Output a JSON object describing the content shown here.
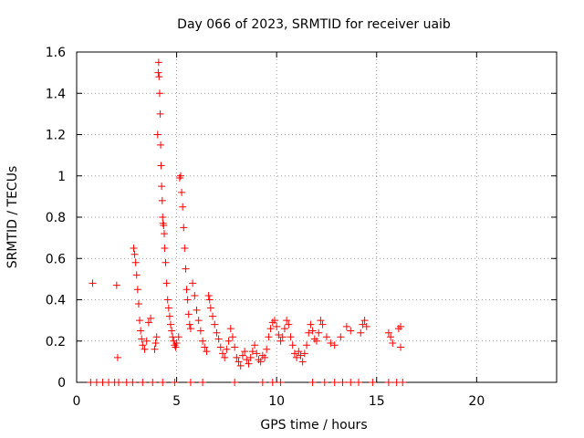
{
  "chart_data": {
    "type": "scatter",
    "title": "Day 066 of 2023, SRMTID for receiver uaib",
    "xlabel": "GPS time / hours",
    "ylabel": "SRMTID / TECUs",
    "xlim": [
      0,
      24
    ],
    "ylim": [
      0,
      1.6
    ],
    "xticks": [
      0,
      5,
      10,
      15,
      20
    ],
    "xtick_labels": [
      "0",
      "5",
      "10",
      "15",
      "20"
    ],
    "yticks": [
      0,
      0.2,
      0.4,
      0.6,
      0.8,
      1,
      1.2,
      1.4,
      1.6
    ],
    "ytick_labels": [
      "0",
      "0.2",
      "0.4",
      "0.6",
      "0.8",
      "1",
      "1.2",
      "1.4",
      "1.6"
    ],
    "grid": true,
    "marker": "+",
    "color": "#ff0000",
    "series": [
      {
        "name": "SRMTID",
        "points": [
          [
            0.8,
            0.48
          ],
          [
            2.0,
            0.47
          ],
          [
            2.05,
            0.12
          ],
          [
            2.85,
            0.65
          ],
          [
            2.9,
            0.62
          ],
          [
            2.95,
            0.58
          ],
          [
            3.0,
            0.52
          ],
          [
            3.05,
            0.45
          ],
          [
            3.1,
            0.38
          ],
          [
            3.15,
            0.3
          ],
          [
            3.2,
            0.25
          ],
          [
            3.25,
            0.21
          ],
          [
            3.3,
            0.18
          ],
          [
            3.4,
            0.16
          ],
          [
            3.5,
            0.2
          ],
          [
            3.6,
            0.29
          ],
          [
            3.7,
            0.31
          ],
          [
            3.9,
            0.16
          ],
          [
            3.95,
            0.19
          ],
          [
            4.0,
            0.22
          ],
          [
            4.05,
            1.2
          ],
          [
            4.08,
            1.5
          ],
          [
            4.1,
            1.55
          ],
          [
            4.12,
            1.48
          ],
          [
            4.15,
            1.4
          ],
          [
            4.18,
            1.3
          ],
          [
            4.2,
            1.15
          ],
          [
            4.22,
            1.05
          ],
          [
            4.25,
            0.95
          ],
          [
            4.28,
            0.88
          ],
          [
            4.3,
            0.8
          ],
          [
            4.32,
            0.77
          ],
          [
            4.35,
            0.76
          ],
          [
            4.38,
            0.72
          ],
          [
            4.4,
            0.65
          ],
          [
            4.45,
            0.58
          ],
          [
            4.5,
            0.48
          ],
          [
            4.55,
            0.4
          ],
          [
            4.6,
            0.36
          ],
          [
            4.65,
            0.32
          ],
          [
            4.7,
            0.28
          ],
          [
            4.75,
            0.25
          ],
          [
            4.8,
            0.22
          ],
          [
            4.85,
            0.2
          ],
          [
            4.9,
            0.18
          ],
          [
            4.95,
            0.17
          ],
          [
            5.0,
            0.19
          ],
          [
            5.1,
            0.22
          ],
          [
            5.15,
            0.99
          ],
          [
            5.2,
            1.0
          ],
          [
            5.25,
            0.92
          ],
          [
            5.3,
            0.85
          ],
          [
            5.35,
            0.75
          ],
          [
            5.4,
            0.65
          ],
          [
            5.45,
            0.55
          ],
          [
            5.5,
            0.45
          ],
          [
            5.55,
            0.4
          ],
          [
            5.6,
            0.33
          ],
          [
            5.65,
            0.28
          ],
          [
            5.7,
            0.26
          ],
          [
            5.8,
            0.48
          ],
          [
            5.9,
            0.42
          ],
          [
            6.0,
            0.35
          ],
          [
            6.1,
            0.3
          ],
          [
            6.2,
            0.25
          ],
          [
            6.3,
            0.2
          ],
          [
            6.4,
            0.17
          ],
          [
            6.5,
            0.15
          ],
          [
            6.6,
            0.42
          ],
          [
            6.65,
            0.4
          ],
          [
            6.7,
            0.36
          ],
          [
            6.8,
            0.32
          ],
          [
            6.9,
            0.28
          ],
          [
            7.0,
            0.24
          ],
          [
            7.1,
            0.21
          ],
          [
            7.2,
            0.17
          ],
          [
            7.3,
            0.14
          ],
          [
            7.4,
            0.12
          ],
          [
            7.5,
            0.16
          ],
          [
            7.6,
            0.2
          ],
          [
            7.7,
            0.26
          ],
          [
            7.8,
            0.22
          ],
          [
            7.9,
            0.17
          ],
          [
            8.0,
            0.12
          ],
          [
            8.1,
            0.1
          ],
          [
            8.2,
            0.08
          ],
          [
            8.3,
            0.13
          ],
          [
            8.4,
            0.15
          ],
          [
            8.5,
            0.11
          ],
          [
            8.6,
            0.09
          ],
          [
            8.7,
            0.12
          ],
          [
            8.8,
            0.15
          ],
          [
            8.9,
            0.18
          ],
          [
            9.0,
            0.14
          ],
          [
            9.1,
            0.11
          ],
          [
            9.2,
            0.1
          ],
          [
            9.3,
            0.13
          ],
          [
            9.4,
            0.12
          ],
          [
            9.5,
            0.16
          ],
          [
            9.6,
            0.22
          ],
          [
            9.7,
            0.26
          ],
          [
            9.8,
            0.29
          ],
          [
            9.9,
            0.3
          ],
          [
            10.0,
            0.27
          ],
          [
            10.1,
            0.23
          ],
          [
            10.2,
            0.2
          ],
          [
            10.3,
            0.22
          ],
          [
            10.4,
            0.26
          ],
          [
            10.5,
            0.3
          ],
          [
            10.6,
            0.28
          ],
          [
            10.7,
            0.22
          ],
          [
            10.8,
            0.18
          ],
          [
            10.9,
            0.14
          ],
          [
            11.0,
            0.12
          ],
          [
            11.1,
            0.15
          ],
          [
            11.2,
            0.13
          ],
          [
            11.3,
            0.1
          ],
          [
            11.4,
            0.14
          ],
          [
            11.5,
            0.18
          ],
          [
            11.6,
            0.24
          ],
          [
            11.7,
            0.28
          ],
          [
            11.8,
            0.25
          ],
          [
            11.9,
            0.21
          ],
          [
            12.0,
            0.2
          ],
          [
            12.1,
            0.24
          ],
          [
            12.2,
            0.3
          ],
          [
            12.3,
            0.28
          ],
          [
            12.5,
            0.22
          ],
          [
            12.7,
            0.19
          ],
          [
            12.9,
            0.18
          ],
          [
            13.2,
            0.22
          ],
          [
            13.5,
            0.27
          ],
          [
            13.7,
            0.25
          ],
          [
            14.2,
            0.24
          ],
          [
            14.3,
            0.28
          ],
          [
            14.4,
            0.3
          ],
          [
            14.5,
            0.27
          ],
          [
            15.6,
            0.24
          ],
          [
            15.7,
            0.22
          ],
          [
            15.8,
            0.19
          ],
          [
            16.1,
            0.26
          ],
          [
            16.2,
            0.27
          ],
          [
            16.2,
            0.17
          ],
          [
            0.7,
            0.0
          ],
          [
            1.0,
            0.0
          ],
          [
            1.3,
            0.0
          ],
          [
            1.6,
            0.0
          ],
          [
            1.9,
            0.0
          ],
          [
            2.1,
            0.0
          ],
          [
            2.5,
            0.0
          ],
          [
            2.8,
            0.0
          ],
          [
            3.3,
            0.0
          ],
          [
            3.8,
            0.0
          ],
          [
            4.3,
            0.0
          ],
          [
            4.9,
            0.0
          ],
          [
            5.7,
            0.0
          ],
          [
            6.3,
            0.0
          ],
          [
            7.9,
            0.0
          ],
          [
            9.3,
            0.0
          ],
          [
            9.8,
            0.0
          ],
          [
            10.2,
            0.0
          ],
          [
            11.8,
            0.0
          ],
          [
            12.4,
            0.0
          ],
          [
            12.9,
            0.0
          ],
          [
            13.3,
            0.0
          ],
          [
            13.7,
            0.0
          ],
          [
            14.1,
            0.0
          ],
          [
            14.8,
            0.0
          ],
          [
            15.6,
            0.0
          ],
          [
            16.0,
            0.0
          ],
          [
            16.3,
            0.0
          ]
        ]
      }
    ]
  }
}
